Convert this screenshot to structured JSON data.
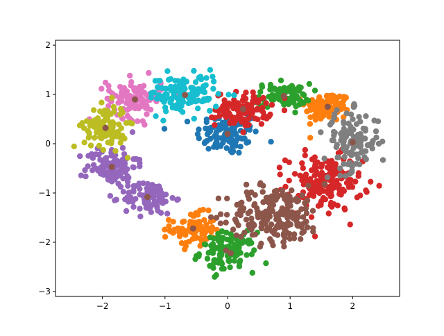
{
  "chart_data": {
    "type": "scatter",
    "title": "",
    "xlabel": "",
    "ylabel": "",
    "xlim": [
      -2.75,
      2.75
    ],
    "ylim": [
      -3.1,
      2.1
    ],
    "xticks": [
      -2,
      -1,
      0,
      1,
      2
    ],
    "yticks": [
      -3,
      -2,
      -1,
      0,
      1,
      2
    ],
    "xtick_labels": [
      "−2",
      "−1",
      "0",
      "1",
      "2"
    ],
    "ytick_labels": [
      "−3",
      "−2",
      "−1",
      "0",
      "1",
      "2"
    ],
    "grid": false,
    "legend": "none",
    "centroid_color": "#8c564b",
    "clusters": [
      {
        "color": "#1f77b4",
        "center": [
          0.0,
          0.2
        ],
        "spread": [
          0.25,
          0.22
        ],
        "count": 110
      },
      {
        "color": "#ff7f0e",
        "center": [
          1.6,
          0.75
        ],
        "spread": [
          0.18,
          0.15
        ],
        "count": 110
      },
      {
        "color": "#ff7f0e",
        "center": [
          -0.55,
          -1.75
        ],
        "spread": [
          0.18,
          0.17
        ],
        "count": 90
      },
      {
        "color": "#2ca02c",
        "center": [
          0.88,
          0.98
        ],
        "spread": [
          0.22,
          0.12
        ],
        "count": 90
      },
      {
        "color": "#2ca02c",
        "center": [
          0.0,
          -2.2
        ],
        "spread": [
          0.22,
          0.2
        ],
        "count": 110
      },
      {
        "color": "#d62728",
        "center": [
          0.25,
          0.7
        ],
        "spread": [
          0.22,
          0.17
        ],
        "count": 110
      },
      {
        "color": "#d62728",
        "center": [
          1.55,
          -0.8
        ],
        "spread": [
          0.3,
          0.28
        ],
        "count": 170
      },
      {
        "color": "#9467bd",
        "center": [
          -1.85,
          -0.45
        ],
        "spread": [
          0.2,
          0.2
        ],
        "count": 110
      },
      {
        "color": "#9467bd",
        "center": [
          -1.25,
          -1.1
        ],
        "spread": [
          0.2,
          0.17
        ],
        "count": 90
      },
      {
        "color": "#8c564b",
        "center": [
          0.75,
          -1.45
        ],
        "spread": [
          0.38,
          0.3
        ],
        "count": 200
      },
      {
        "color": "#e377c2",
        "center": [
          -1.5,
          0.92
        ],
        "spread": [
          0.22,
          0.2
        ],
        "count": 110
      },
      {
        "color": "#7f7f7f",
        "center": [
          1.98,
          0.05
        ],
        "spread": [
          0.22,
          0.3
        ],
        "count": 120
      },
      {
        "color": "#bcbd22",
        "center": [
          -1.95,
          0.35
        ],
        "spread": [
          0.17,
          0.22
        ],
        "count": 110
      },
      {
        "color": "#17becf",
        "center": [
          -0.7,
          1.0
        ],
        "spread": [
          0.28,
          0.2
        ],
        "count": 130
      }
    ],
    "centroids": [
      {
        "x": 0.0,
        "y": 0.2
      },
      {
        "x": 1.6,
        "y": 0.75
      },
      {
        "x": -0.55,
        "y": -1.72
      },
      {
        "x": 0.9,
        "y": 0.97
      },
      {
        "x": 0.05,
        "y": -2.22
      },
      {
        "x": 0.25,
        "y": 0.7
      },
      {
        "x": 1.55,
        "y": -0.82
      },
      {
        "x": -1.85,
        "y": -0.47
      },
      {
        "x": -1.28,
        "y": -1.08
      },
      {
        "x": 0.78,
        "y": -1.45
      },
      {
        "x": -1.48,
        "y": 0.9
      },
      {
        "x": 2.0,
        "y": 0.03
      },
      {
        "x": -1.95,
        "y": 0.32
      },
      {
        "x": -0.68,
        "y": 0.99
      }
    ]
  }
}
